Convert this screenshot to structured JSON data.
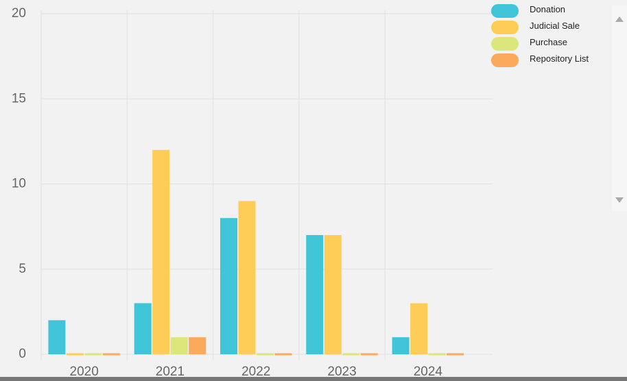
{
  "chart_data": {
    "type": "bar",
    "categories": [
      "2020",
      "2021",
      "2022",
      "2023",
      "2024"
    ],
    "series": [
      {
        "name": "Donation",
        "color": "#40c4d8",
        "values": [
          2,
          3,
          8,
          7,
          1
        ]
      },
      {
        "name": "Judicial Sale",
        "color": "#fecd57",
        "values": [
          0,
          12,
          9,
          7,
          3
        ]
      },
      {
        "name": "Purchase",
        "color": "#dce67a",
        "values": [
          0,
          1,
          0,
          0,
          0
        ]
      },
      {
        "name": "Repository List",
        "color": "#fba95b",
        "values": [
          0,
          1,
          0,
          0,
          0
        ]
      }
    ],
    "ylim": [
      0,
      20
    ],
    "yticks": [
      0,
      5,
      10,
      15,
      20
    ],
    "grid": true,
    "legend": "top-right"
  }
}
